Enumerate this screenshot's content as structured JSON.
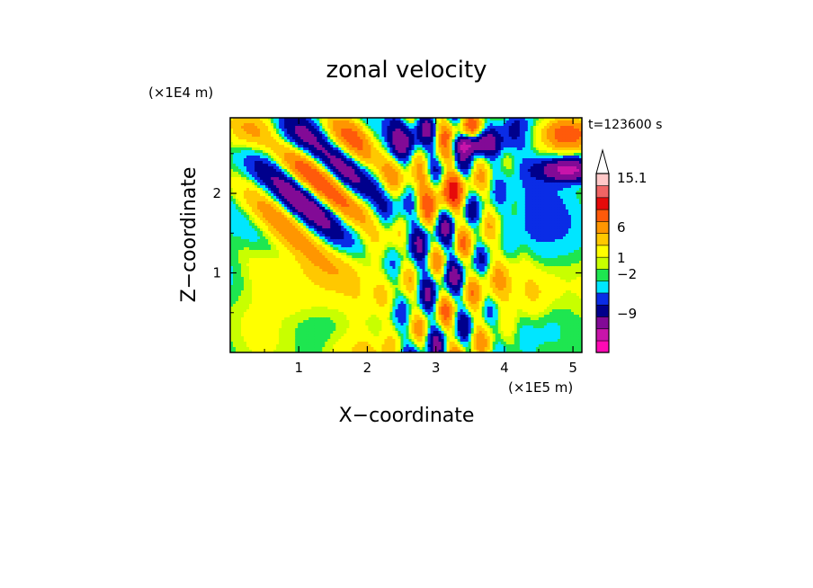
{
  "chart_data": {
    "type": "heatmap",
    "title": "zonal velocity",
    "xlabel": "X−coordinate",
    "ylabel": "Z−coordinate",
    "x_multiplier": "(×1E5 m)",
    "y_multiplier": "(×1E4 m)",
    "time_label": "t=123600 s",
    "xlim": [
      0,
      5.13
    ],
    "ylim": [
      0,
      2.95
    ],
    "x_ticks": [
      "1",
      "2",
      "3",
      "4",
      "5"
    ],
    "x_tick_values": [
      1,
      2,
      3,
      4,
      5
    ],
    "y_ticks": [
      "1",
      "2"
    ],
    "y_tick_values": [
      1,
      2
    ],
    "colorbar": {
      "colors": [
        "#ff0ab4",
        "#c814aa",
        "#820a96",
        "#00008c",
        "#0a2ce6",
        "#00e6ff",
        "#1ee650",
        "#c8ff00",
        "#ffff00",
        "#ffc800",
        "#ff9600",
        "#ff5a0a",
        "#e60a0a",
        "#f06464",
        "#ffc8c8"
      ],
      "labels": [
        "15.1",
        "6",
        "1",
        "−2",
        "−9"
      ],
      "label_levels": [
        15.1,
        6,
        1,
        -2,
        -9
      ],
      "extend": "max",
      "placement": "right"
    },
    "field_description": "2D zonal velocity contour field; wave-like alternating bands upper-left, disturbed region x≈2.5–4, strong negative cores near (3.5, 2.65) and (5, 2.3)"
  }
}
